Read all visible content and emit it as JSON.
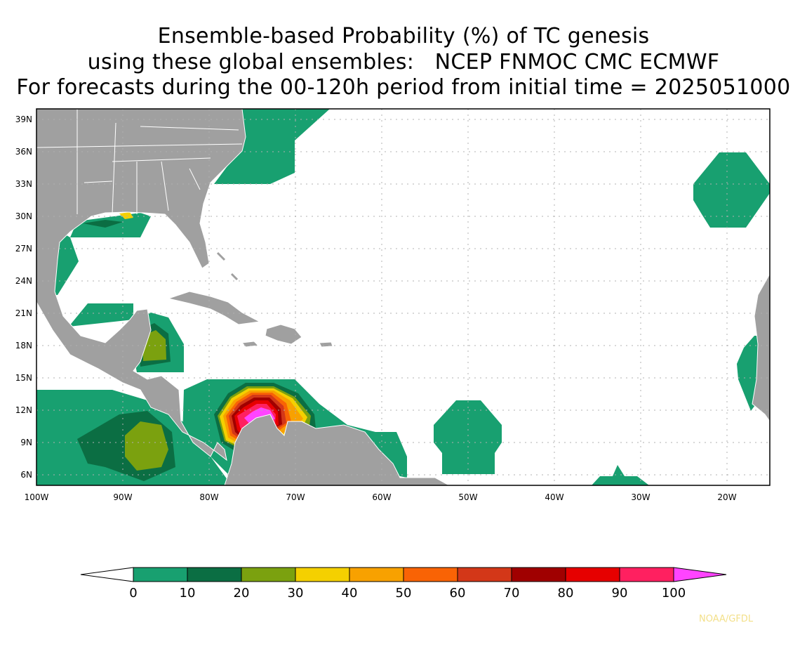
{
  "title": {
    "line1": "Ensemble-based Probability (%) of TC genesis",
    "line2": "using these global ensembles:   NCEP FNMOC CMC ECMWF",
    "line3": "For forecasts during the 00-120h period from initial time = 2025051000"
  },
  "map": {
    "lon_range": [
      -100,
      -15
    ],
    "lat_range": [
      5,
      40
    ],
    "lat_ticks": [
      "39N",
      "36N",
      "33N",
      "30N",
      "27N",
      "24N",
      "21N",
      "18N",
      "15N",
      "12N",
      "9N",
      "6N"
    ],
    "lon_ticks": [
      "100W",
      "90W",
      "80W",
      "70W",
      "60W",
      "50W",
      "40W",
      "30W",
      "20W"
    ],
    "land_color": "#a0a0a0",
    "grid_style": "dotted"
  },
  "colorbar": {
    "labels": [
      "0",
      "10",
      "20",
      "30",
      "40",
      "50",
      "60",
      "70",
      "80",
      "90",
      "100"
    ],
    "colors": [
      "#ffffff",
      "#18a070",
      "#0b6e43",
      "#7ba10f",
      "#f4d000",
      "#f8a100",
      "#f96305",
      "#d33718",
      "#a00000",
      "#e60000",
      "#ff2060",
      "#ff44ff"
    ]
  },
  "credit": "NOAA/GFDL"
}
